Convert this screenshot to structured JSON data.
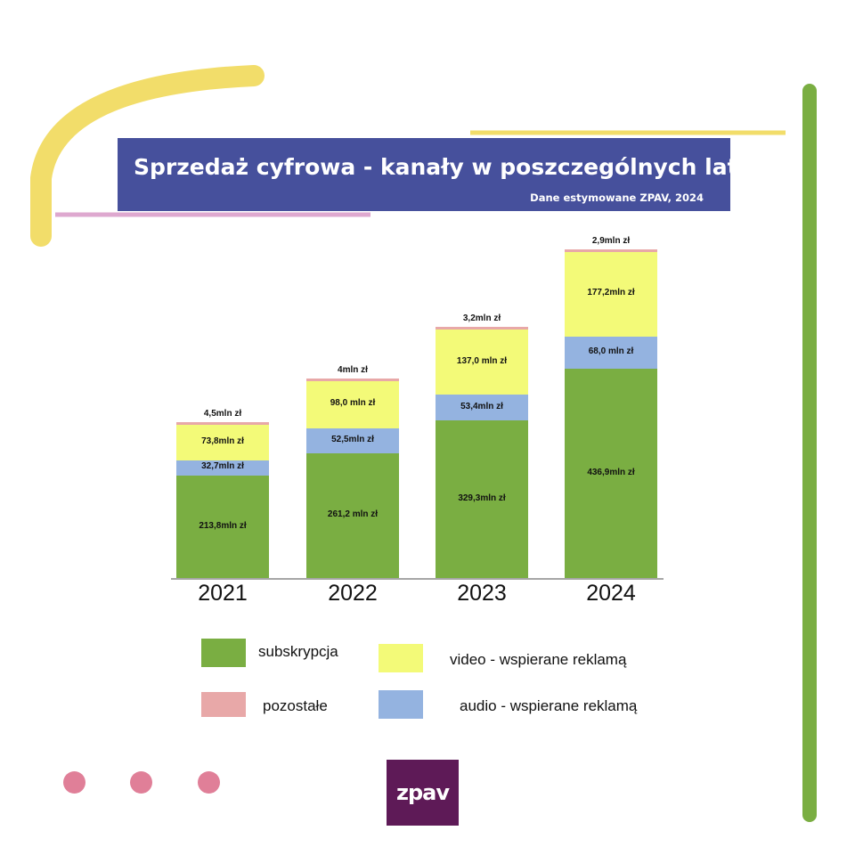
{
  "title": "Sprzedaż cyfrowa - kanały w poszczególnych latach",
  "subtitle": "Dane estymowane ZPAV, 2024",
  "logo_text": "zpav",
  "colors": {
    "subskrypcja": "#7aae42",
    "audio": "#94b3e0",
    "video": "#f3fa78",
    "pozostale": "#e8a8a8",
    "title_bg": "#46509c",
    "logo_bg": "#5e1a57"
  },
  "chart_data": {
    "type": "bar",
    "stacked": true,
    "title": "Sprzedaż cyfrowa - kanały w poszczególnych latach",
    "categories": [
      "2021",
      "2022",
      "2023",
      "2024"
    ],
    "unit": "mln zł",
    "series": [
      {
        "key": "subskrypcja",
        "name": "subskrypcja",
        "values": [
          213.8,
          261.2,
          329.3,
          436.9
        ],
        "labels": [
          "213,8mln zł",
          "261,2 mln zł",
          "329,3mln zł",
          "436,9mln zł"
        ]
      },
      {
        "key": "audio",
        "name": "audio - wspierane reklamą",
        "values": [
          32.7,
          52.5,
          53.4,
          68.0
        ],
        "labels": [
          "32,7mln zł",
          "52,5mln zł",
          "53,4mln zł",
          "68,0 mln zł"
        ]
      },
      {
        "key": "video",
        "name": "video - wspierane reklamą",
        "values": [
          73.8,
          98.0,
          137.0,
          177.2
        ],
        "labels": [
          "73,8mln zł",
          "98,0 mln zł",
          "137,0 mln zł",
          "177,2mln zł"
        ]
      },
      {
        "key": "pozostale",
        "name": "pozostałe",
        "values": [
          4.5,
          4.0,
          3.2,
          2.9
        ],
        "labels": [
          "4,5mln zł",
          "4mln zł",
          "3,2mln zł",
          "2,9mln zł"
        ]
      }
    ],
    "legend": [
      "subskrypcja",
      "video - wspierane reklamą",
      "pozostałe",
      "audio - wspierane reklamą"
    ],
    "legend_placement": "bottom"
  }
}
